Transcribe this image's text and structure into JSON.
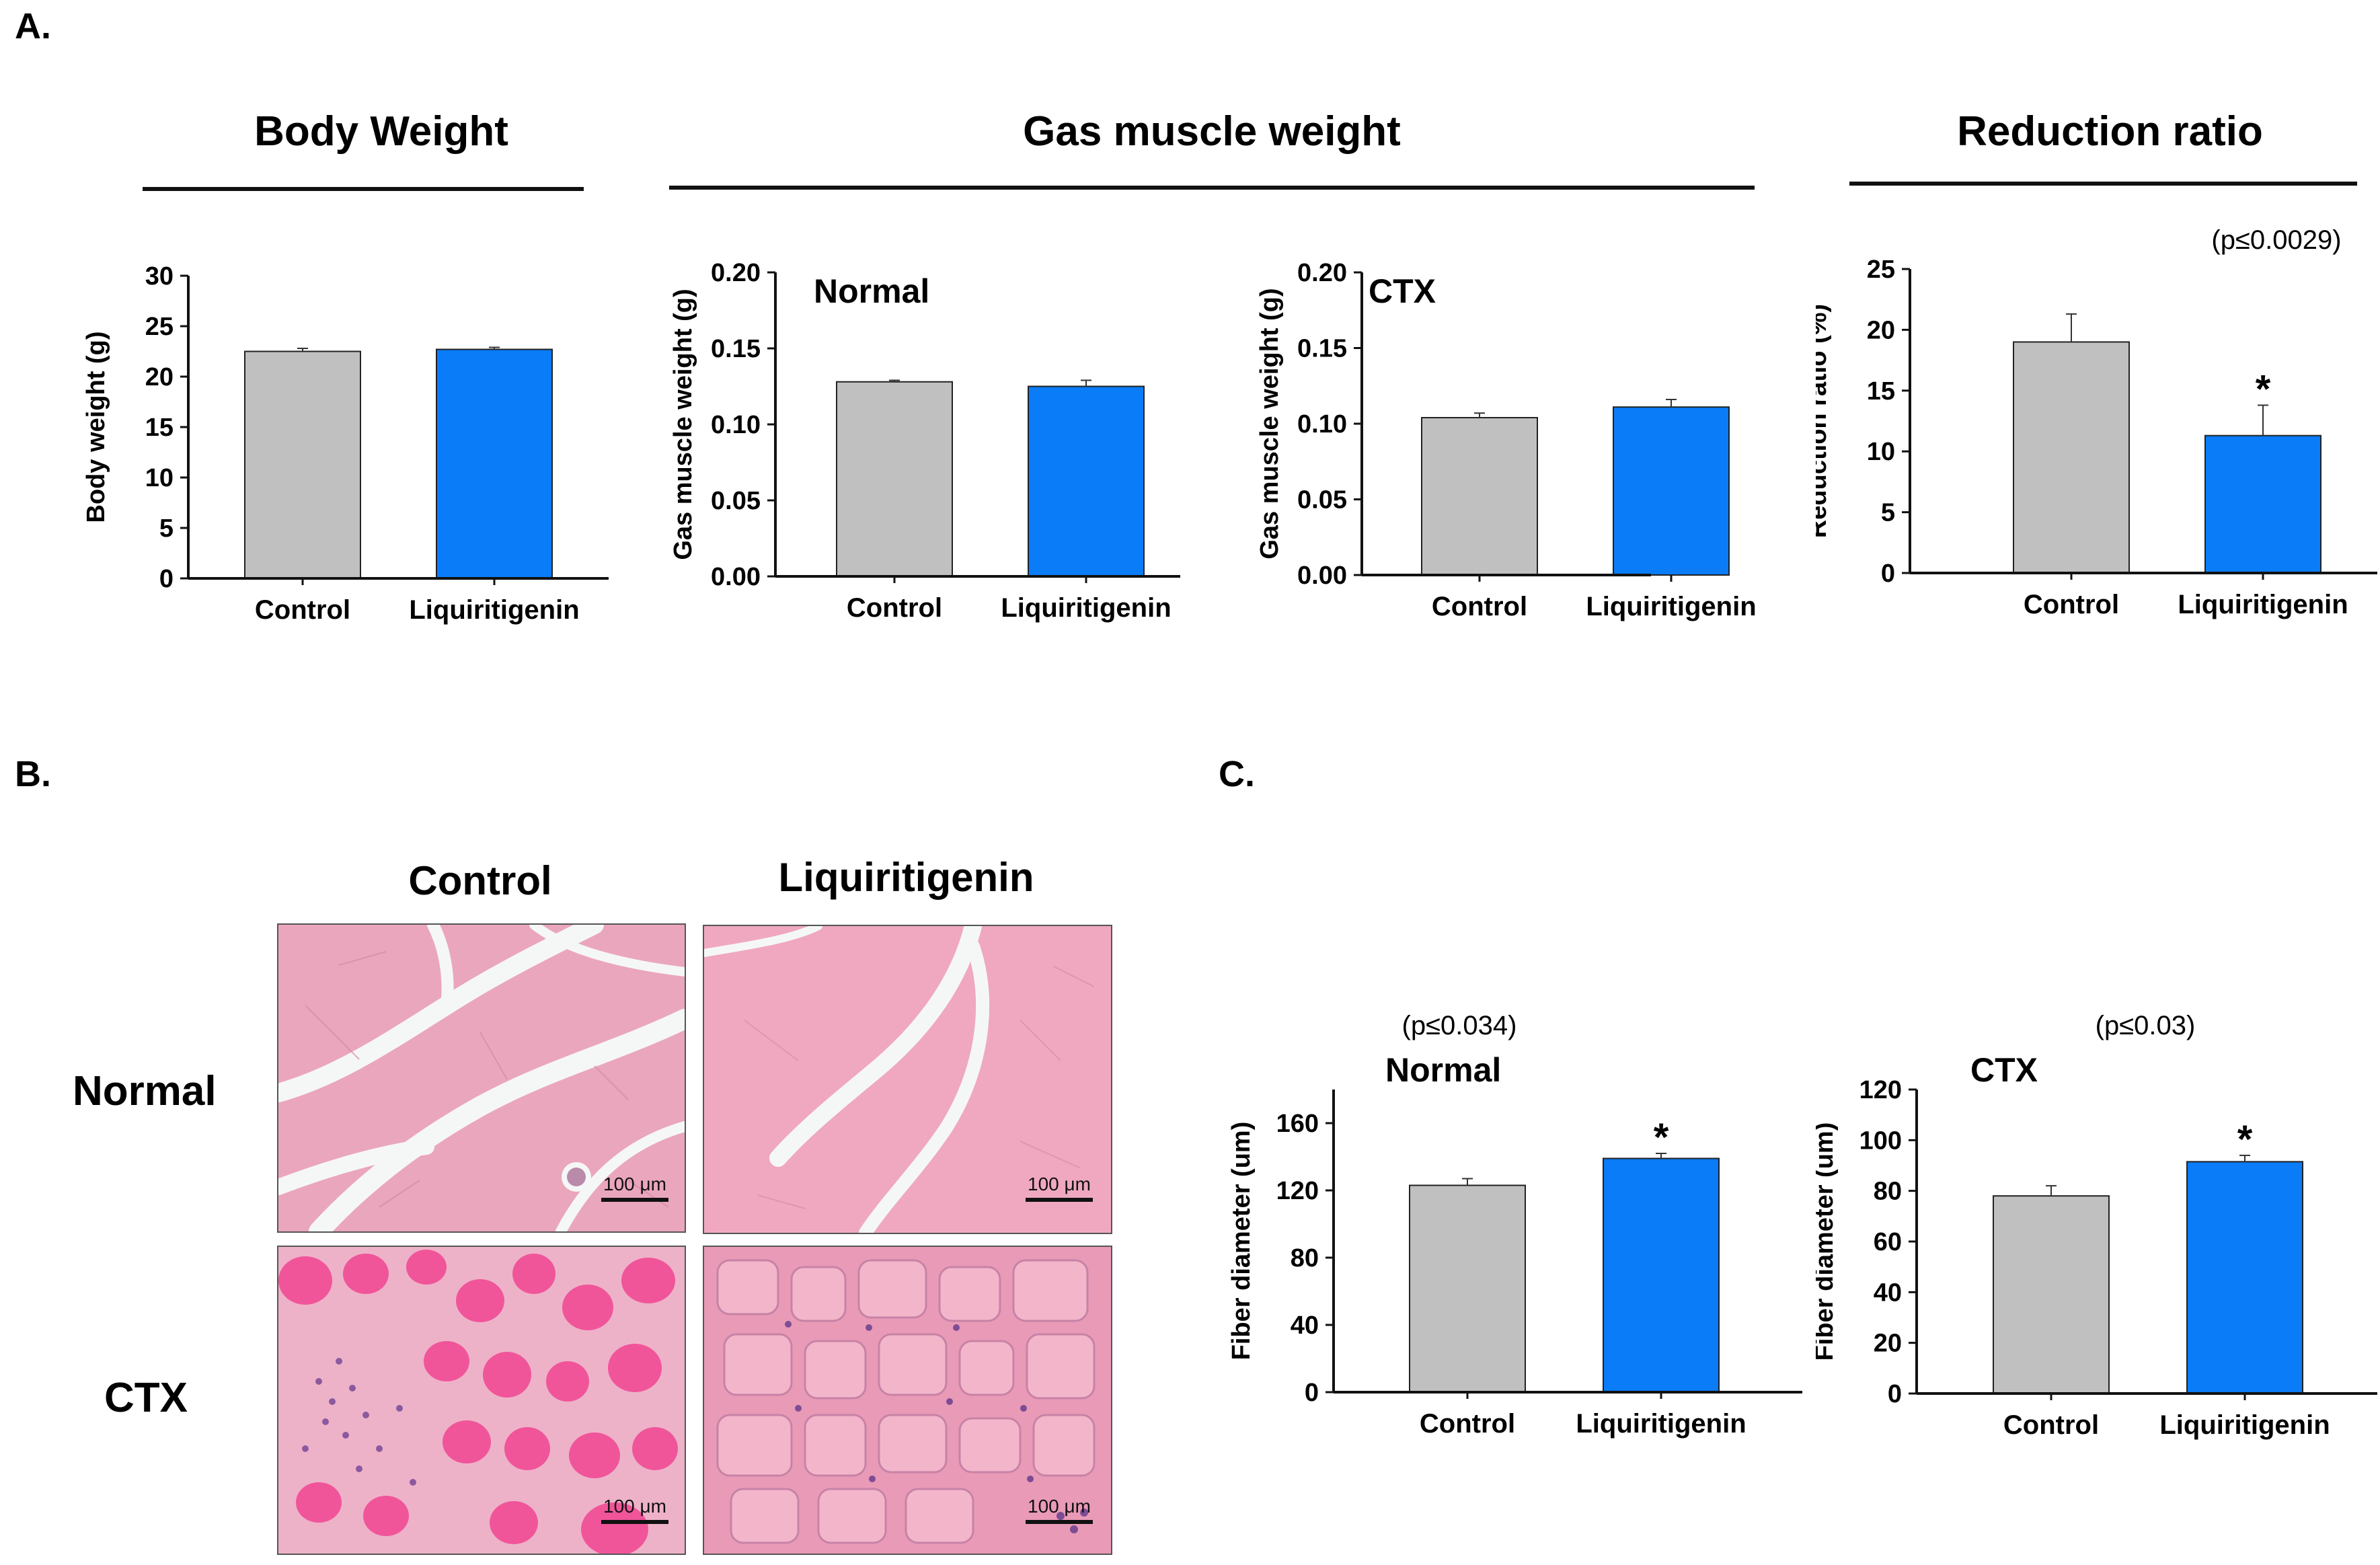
{
  "panels": {
    "a": "A.",
    "b": "B.",
    "c": "C."
  },
  "group_titles": {
    "body_weight": "Body Weight",
    "gas_muscle": "Gas muscle weight",
    "reduction": "Reduction ratio"
  },
  "histology": {
    "columns": [
      "Control",
      "Liquiritigenin"
    ],
    "rows": [
      "Normal",
      "CTX"
    ],
    "scale_label": "100 μm"
  },
  "colors": {
    "control": "#c0c0c0",
    "treatment": "#0a7cf7"
  },
  "chart_data": [
    {
      "type": "bar",
      "id": "body",
      "title": "",
      "pvalue": "",
      "categories": [
        "Control",
        "Liquiritigenin"
      ],
      "values": [
        22.5,
        22.7
      ],
      "errors": [
        0.3,
        0.2
      ],
      "significant": [
        false,
        false
      ],
      "ylabel": "Body weight (g)",
      "ylim": [
        0,
        30
      ],
      "yticks": [
        "0",
        "5",
        "10",
        "15",
        "20",
        "25",
        "30"
      ]
    },
    {
      "type": "bar",
      "id": "gas_normal",
      "title": "Normal",
      "pvalue": "",
      "categories": [
        "Control",
        "Liquiritigenin"
      ],
      "values": [
        0.128,
        0.125
      ],
      "errors": [
        0.001,
        0.004
      ],
      "significant": [
        false,
        false
      ],
      "ylabel": "Gas muscle weight (g)",
      "ylim": [
        0,
        0.2
      ],
      "yticks": [
        "0.00",
        "0.05",
        "0.10",
        "0.15",
        "0.20"
      ]
    },
    {
      "type": "bar",
      "id": "gas_ctx",
      "title": "CTX",
      "pvalue": "",
      "categories": [
        "Control",
        "Liquiritigenin"
      ],
      "values": [
        0.104,
        0.111
      ],
      "errors": [
        0.003,
        0.005
      ],
      "significant": [
        false,
        false
      ],
      "ylabel": "Gas muscle weight (g)",
      "ylim": [
        0,
        0.2
      ],
      "yticks": [
        "0.00",
        "0.05",
        "0.10",
        "0.15",
        "0.20"
      ]
    },
    {
      "type": "bar",
      "id": "reduction",
      "title": "",
      "pvalue": "(p≤0.0029)",
      "categories": [
        "Control",
        "Liquiritigenin"
      ],
      "values": [
        19.0,
        11.3
      ],
      "errors": [
        2.3,
        2.5
      ],
      "significant": [
        false,
        true
      ],
      "sig_mark": "*",
      "ylabel": "Reduction ratio (%)",
      "ylim": [
        0,
        25
      ],
      "yticks": [
        "0",
        "5",
        "10",
        "15",
        "20",
        "25"
      ]
    },
    {
      "type": "bar",
      "id": "fiber_normal",
      "title": "Normal",
      "pvalue": "(p≤0.034)",
      "categories": [
        "Control",
        "Liquiritigenin"
      ],
      "values": [
        123,
        139
      ],
      "errors": [
        4,
        3
      ],
      "significant": [
        false,
        true
      ],
      "sig_mark": "*",
      "ylabel": "Fiber  diameter (um)",
      "ylim": [
        0,
        180
      ],
      "yticks": [
        "0",
        "40",
        "80",
        "120",
        "160"
      ]
    },
    {
      "type": "bar",
      "id": "fiber_ctx",
      "title": "CTX",
      "pvalue": "(p≤0.03)",
      "categories": [
        "Control",
        "Liquiritigenin"
      ],
      "values": [
        78,
        91.5
      ],
      "errors": [
        4,
        2.5
      ],
      "significant": [
        false,
        true
      ],
      "sig_mark": "*",
      "ylabel": "Fiber diameter (um)",
      "ylim": [
        0,
        120
      ],
      "yticks": [
        "0",
        "20",
        "40",
        "60",
        "80",
        "100",
        "120"
      ]
    }
  ]
}
